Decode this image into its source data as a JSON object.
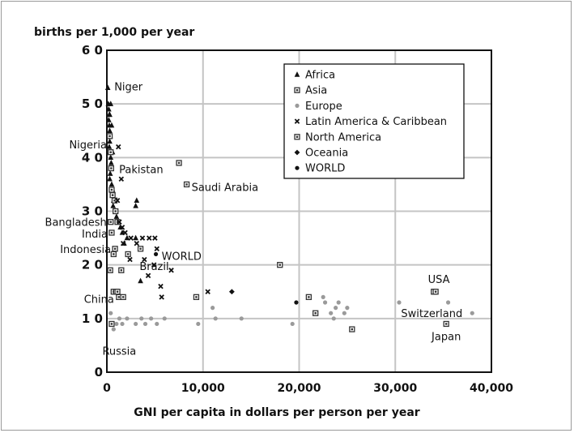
{
  "chart_data": {
    "type": "scatter",
    "title": "",
    "ylabel": "births per 1,000 per year",
    "xlabel": "GNI per capita in dollars per person per year",
    "xlim": [
      0,
      40000
    ],
    "ylim": [
      0,
      60
    ],
    "xticks": [
      0,
      10000,
      20000,
      30000,
      40000
    ],
    "xtick_labels": [
      "0",
      "10,000",
      "20,000",
      "30,000",
      "40,000"
    ],
    "yticks": [
      0,
      10,
      20,
      30,
      40,
      50,
      60
    ],
    "ytick_labels": [
      "0",
      "1 0",
      "2 0",
      "3 0",
      "4 0",
      "5 0",
      "6 0"
    ],
    "grid": true,
    "legend_position": "top-right",
    "series": [
      {
        "name": "Africa",
        "marker": "triangle",
        "color": "#111111",
        "points": [
          [
            100,
            53
          ],
          [
            150,
            50
          ],
          [
            200,
            49
          ],
          [
            250,
            48
          ],
          [
            200,
            47
          ],
          [
            250,
            46
          ],
          [
            300,
            45
          ],
          [
            350,
            44
          ],
          [
            300,
            43
          ],
          [
            250,
            42
          ],
          [
            300,
            41
          ],
          [
            400,
            40
          ],
          [
            450,
            39
          ],
          [
            400,
            38
          ],
          [
            350,
            37
          ],
          [
            300,
            36
          ],
          [
            500,
            35
          ],
          [
            600,
            34
          ],
          [
            550,
            33
          ],
          [
            700,
            32
          ],
          [
            650,
            31
          ],
          [
            900,
            30
          ],
          [
            1000,
            29
          ],
          [
            1200,
            28
          ],
          [
            1400,
            27
          ],
          [
            1600,
            26
          ],
          [
            2100,
            25
          ],
          [
            1800,
            24
          ],
          [
            3100,
            32
          ],
          [
            3000,
            31
          ],
          [
            3000,
            25
          ],
          [
            3500,
            17
          ],
          [
            500,
            46
          ],
          [
            400,
            50
          ],
          [
            600,
            41
          ],
          [
            300,
            48
          ]
        ]
      },
      {
        "name": "Asia",
        "marker": "square-dot",
        "color": "#333333",
        "points": [
          [
            300,
            44
          ],
          [
            400,
            41
          ],
          [
            450,
            38
          ],
          [
            500,
            34
          ],
          [
            600,
            33
          ],
          [
            800,
            32
          ],
          [
            900,
            30
          ],
          [
            1100,
            28
          ],
          [
            400,
            28
          ],
          [
            500,
            26
          ],
          [
            350,
            19
          ],
          [
            700,
            22
          ],
          [
            850,
            23
          ],
          [
            700,
            15
          ],
          [
            950,
            15
          ],
          [
            1100,
            15
          ],
          [
            1250,
            14
          ],
          [
            1500,
            19
          ],
          [
            1700,
            14
          ],
          [
            3500,
            23
          ],
          [
            2200,
            22
          ],
          [
            7500,
            39
          ],
          [
            8300,
            35
          ],
          [
            18000,
            20
          ],
          [
            9300,
            14
          ],
          [
            500,
            9
          ],
          [
            21000,
            14
          ],
          [
            21700,
            11
          ],
          [
            25500,
            8
          ],
          [
            35300,
            9
          ],
          [
            34000,
            15
          ]
        ]
      },
      {
        "name": "Europe",
        "marker": "circle",
        "color": "#9a9a9a",
        "points": [
          [
            400,
            11
          ],
          [
            700,
            8
          ],
          [
            1000,
            9
          ],
          [
            1300,
            10
          ],
          [
            1600,
            9
          ],
          [
            2100,
            10
          ],
          [
            3000,
            9
          ],
          [
            3600,
            10
          ],
          [
            4000,
            9
          ],
          [
            4600,
            10
          ],
          [
            5200,
            9
          ],
          [
            6000,
            10
          ],
          [
            9500,
            9
          ],
          [
            11000,
            12
          ],
          [
            11300,
            10
          ],
          [
            14000,
            10
          ],
          [
            19300,
            9
          ],
          [
            22500,
            14
          ],
          [
            22700,
            13
          ],
          [
            23300,
            11
          ],
          [
            23600,
            10
          ],
          [
            23800,
            12
          ],
          [
            24100,
            13
          ],
          [
            24700,
            11
          ],
          [
            25000,
            12
          ],
          [
            30400,
            13
          ],
          [
            35500,
            13
          ],
          [
            38000,
            11
          ]
        ]
      },
      {
        "name": "Latin America & Caribbean",
        "marker": "x",
        "color": "#111111",
        "points": [
          [
            1200,
            42
          ],
          [
            1500,
            36
          ],
          [
            1100,
            32
          ],
          [
            1300,
            28
          ],
          [
            1600,
            27
          ],
          [
            1900,
            26
          ],
          [
            1700,
            24
          ],
          [
            2500,
            25
          ],
          [
            3100,
            24
          ],
          [
            3700,
            25
          ],
          [
            4400,
            25
          ],
          [
            5000,
            25
          ],
          [
            2400,
            21
          ],
          [
            3900,
            21
          ],
          [
            4300,
            18
          ],
          [
            5200,
            23
          ],
          [
            5600,
            16
          ],
          [
            6700,
            19
          ],
          [
            5700,
            14
          ],
          [
            10500,
            15
          ],
          [
            4900,
            20
          ]
        ]
      },
      {
        "name": "North America",
        "marker": "square-dot",
        "color": "#333333",
        "points": [
          [
            34200,
            15
          ]
        ]
      },
      {
        "name": "Oceania",
        "marker": "diamond",
        "color": "#111111",
        "points": [
          [
            13000,
            15
          ]
        ]
      },
      {
        "name": "WORLD",
        "marker": "circle",
        "color": "#111111",
        "points": [
          [
            5100,
            22
          ],
          [
            19700,
            13
          ]
        ]
      }
    ],
    "annotations": [
      {
        "text": "Niger",
        "x": 100,
        "y": 53
      },
      {
        "text": "Nigeria",
        "x": 250,
        "y": 42
      },
      {
        "text": "Pakistan",
        "x": 600,
        "y": 38
      },
      {
        "text": "Saudi Arabia",
        "x": 8300,
        "y": 35
      },
      {
        "text": "Bangladesh",
        "x": 400,
        "y": 28
      },
      {
        "text": "India",
        "x": 500,
        "y": 26
      },
      {
        "text": "Indonesia",
        "x": 850,
        "y": 23
      },
      {
        "text": "WORLD",
        "x": 5100,
        "y": 22
      },
      {
        "text": "Brazil",
        "x": 3900,
        "y": 21
      },
      {
        "text": "China",
        "x": 1250,
        "y": 14
      },
      {
        "text": "Russia",
        "x": 1300,
        "y": 9
      },
      {
        "text": "USA",
        "x": 34200,
        "y": 15
      },
      {
        "text": "Switzerland",
        "x": 38000,
        "y": 11
      },
      {
        "text": "Japan",
        "x": 35300,
        "y": 9
      }
    ]
  }
}
